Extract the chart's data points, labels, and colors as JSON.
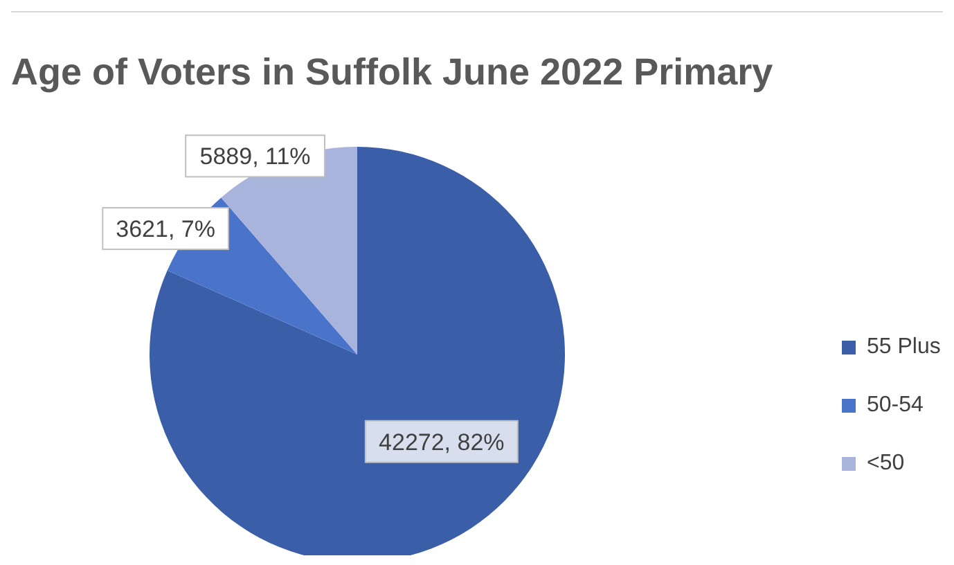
{
  "chart_data": {
    "type": "pie",
    "title": "Age of Voters in Suffolk June 2022 Primary",
    "categories": [
      "55 Plus",
      "50-54",
      "<50"
    ],
    "values": [
      42272,
      3621,
      5889
    ],
    "colors": [
      "#3a5ea8",
      "#4a74c9",
      "#a8b4dc"
    ],
    "value_labels": [
      "42272, 82%",
      "3621, 7%",
      "5889, 11%"
    ],
    "legend": "right"
  }
}
